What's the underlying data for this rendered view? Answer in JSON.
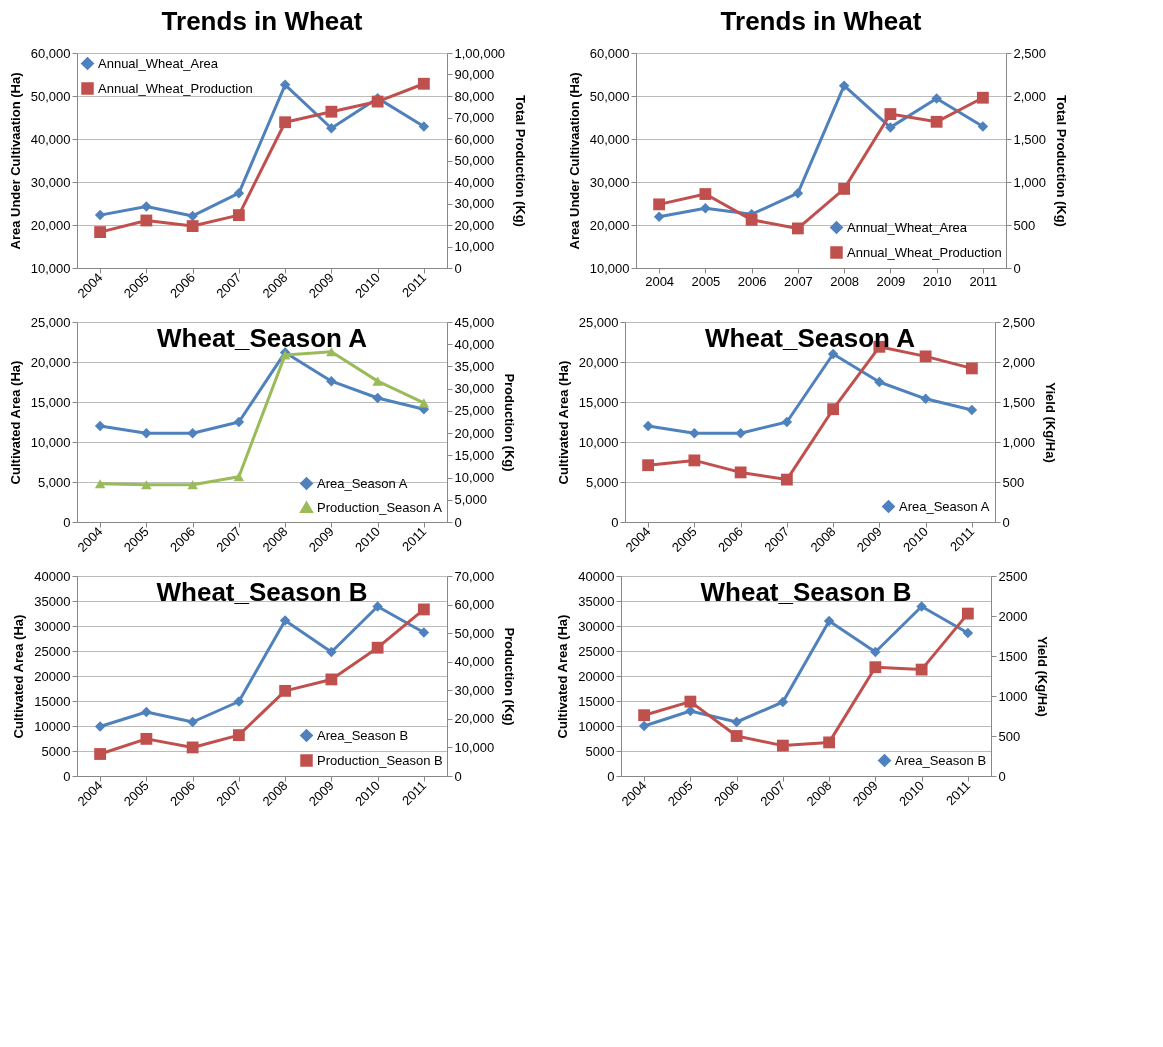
{
  "chart_data": [
    {
      "type": "line",
      "title": "Trends in Wheat",
      "ylabel": "Area Under Cultivaation (Ha)",
      "y2label": "Total Production (Kg)",
      "categories": [
        "2004",
        "2005",
        "2006",
        "2007",
        "2008",
        "2009",
        "2010",
        "2011"
      ],
      "series": [
        {
          "name": "Annual_Wheat_Area",
          "color": "#4f81bd",
          "marker": "diamond",
          "values": [
            22300,
            24300,
            22100,
            27400,
            52600,
            42500,
            49500,
            42900
          ]
        },
        {
          "name": "Annual_Wheat_Production",
          "color": "#c0504d",
          "marker": "square",
          "axis": "y2",
          "values": [
            16700,
            22100,
            19500,
            24600,
            67800,
            72700,
            77400,
            85700
          ]
        }
      ],
      "ylim": [
        10000,
        60000
      ],
      "yticks": [
        {
          "value": 10000,
          "label": "10,000"
        },
        {
          "value": 20000,
          "label": "20,000"
        },
        {
          "value": 30000,
          "label": "30,000"
        },
        {
          "value": 40000,
          "label": "40,000"
        },
        {
          "value": 50000,
          "label": "50,000"
        },
        {
          "value": 60000,
          "label": "60,000"
        }
      ],
      "y2lim": [
        0,
        100000
      ],
      "y2ticks": [
        0,
        {
          "value": 10000,
          "label": "10,000"
        },
        {
          "value": 20000,
          "label": "20,000"
        },
        {
          "value": 30000,
          "label": "30,000"
        },
        {
          "value": 40000,
          "label": "40,000"
        },
        {
          "value": 50000,
          "label": "50,000"
        },
        {
          "value": 60000,
          "label": "60,000"
        },
        {
          "value": 70000,
          "label": "70,000"
        },
        {
          "value": 80000,
          "label": "80,000"
        },
        {
          "value": 90000,
          "label": "90,000"
        },
        {
          "value": 100000,
          "label": "1,00,000"
        }
      ],
      "grid": "y",
      "legend": "top left",
      "line_style": "solid"
    },
    {
      "type": "line",
      "title": "Trends in Wheat",
      "ylabel": "Area Under Cultivaation (Ha)",
      "y2label": "Total Production (Kg)",
      "categories": [
        "2004",
        "2005",
        "2006",
        "2007",
        "2008",
        "2009",
        "2010",
        "2011"
      ],
      "series": [
        {
          "name": "Annual_Wheat_Area",
          "color": "#4f81bd",
          "marker": "diamond",
          "values": [
            21900,
            23900,
            22500,
            27400,
            52400,
            42700,
            49400,
            42900
          ]
        },
        {
          "name": "Annual_Wheat_Production",
          "color": "#c0504d",
          "marker": "square",
          "axis": "y2",
          "values": [
            740,
            860,
            560,
            460,
            920,
            1790,
            1700,
            1980
          ]
        }
      ],
      "ylim": [
        10000,
        60000
      ],
      "yticks": [
        {
          "value": 10000,
          "label": "10,000"
        },
        {
          "value": 20000,
          "label": "20,000"
        },
        {
          "value": 30000,
          "label": "30,000"
        },
        {
          "value": 40000,
          "label": "40,000"
        },
        {
          "value": 50000,
          "label": "50,000"
        },
        {
          "value": 60000,
          "label": "60,000"
        }
      ],
      "y2lim": [
        0,
        2500
      ],
      "y2ticks": [
        0,
        500,
        {
          "value": 1000,
          "label": "1,000"
        },
        {
          "value": 1500,
          "label": "1,500"
        },
        {
          "value": 2000,
          "label": "2,000"
        },
        {
          "value": 2500,
          "label": "2,500"
        }
      ],
      "grid": "y",
      "legend": "bottom right",
      "line_style": "solid"
    },
    {
      "type": "line",
      "title": "Wheat_Season A",
      "ylabel": "Cultivated Area (Ha)",
      "y2label": "Production (Kg)",
      "categories": [
        "2004",
        "2005",
        "2006",
        "2007",
        "2008",
        "2009",
        "2010",
        "2011"
      ],
      "series": [
        {
          "name": "Area_Season A",
          "color": "#4f81bd",
          "marker": "diamond",
          "values": [
            12000,
            11100,
            11100,
            12500,
            21200,
            17600,
            15500,
            14100
          ]
        },
        {
          "name": "Production_Season A",
          "color": "#9bbb59",
          "marker": "triangle",
          "axis": "y2",
          "values": [
            8600,
            8400,
            8400,
            10200,
            37600,
            38300,
            31700,
            26800
          ]
        }
      ],
      "ylim": [
        0,
        25000
      ],
      "yticks": [
        0,
        {
          "value": 5000,
          "label": "5,000"
        },
        {
          "value": 10000,
          "label": "10,000"
        },
        {
          "value": 15000,
          "label": "15,000"
        },
        {
          "value": 20000,
          "label": "20,000"
        },
        {
          "value": 25000,
          "label": "25,000"
        }
      ],
      "y2lim": [
        0,
        45000
      ],
      "y2ticks": [
        0,
        {
          "value": 5000,
          "label": "5,000"
        },
        {
          "value": 10000,
          "label": "10,000"
        },
        {
          "value": 15000,
          "label": "15,000"
        },
        {
          "value": 20000,
          "label": "20,000"
        },
        {
          "value": 25000,
          "label": "25,000"
        },
        {
          "value": 30000,
          "label": "30,000"
        },
        {
          "value": 35000,
          "label": "35,000"
        },
        {
          "value": 40000,
          "label": "40,000"
        },
        {
          "value": 45000,
          "label": "45,000"
        }
      ],
      "grid": "y",
      "legend": "bottom right",
      "line_style": "solid"
    },
    {
      "type": "line",
      "title": "Wheat_Season A",
      "ylabel": "Cultivated Area (Ha)",
      "y2label": "Yield (Kg/Ha)",
      "categories": [
        "2004",
        "2005",
        "2006",
        "2007",
        "2008",
        "2009",
        "2010",
        "2011"
      ],
      "series": [
        {
          "name": "Area_Season A",
          "color": "#4f81bd",
          "marker": "diamond",
          "values": [
            12000,
            11100,
            11100,
            12500,
            21000,
            17500,
            15400,
            14000
          ]
        },
        {
          "color": "#c0504d",
          "marker": "square",
          "axis": "y2",
          "values": [
            710,
            770,
            620,
            530,
            1410,
            2190,
            2070,
            1920
          ]
        }
      ],
      "ylim": [
        0,
        25000
      ],
      "yticks": [
        0,
        {
          "value": 5000,
          "label": "5,000"
        },
        {
          "value": 10000,
          "label": "10,000"
        },
        {
          "value": 15000,
          "label": "15,000"
        },
        {
          "value": 20000,
          "label": "20,000"
        },
        {
          "value": 25000,
          "label": "25,000"
        }
      ],
      "y2lim": [
        0,
        2500
      ],
      "y2ticks": [
        0,
        500,
        {
          "value": 1000,
          "label": "1,000"
        },
        {
          "value": 1500,
          "label": "1,500"
        },
        {
          "value": 2000,
          "label": "2,000"
        },
        {
          "value": 2500,
          "label": "2,500"
        }
      ],
      "grid": "y",
      "legend": "bottom right",
      "line_style": "solid"
    },
    {
      "type": "line",
      "title": "Wheat_Season B",
      "ylabel": "Cultivated Area (Ha)",
      "y2label": "Production (Kg)",
      "categories": [
        "2004",
        "2005",
        "2006",
        "2007",
        "2008",
        "2009",
        "2010",
        "2011"
      ],
      "series": [
        {
          "name": "Area_Season B",
          "color": "#4f81bd",
          "marker": "diamond",
          "values": [
            9900,
            12800,
            10800,
            14900,
            31100,
            24800,
            33900,
            28700
          ]
        },
        {
          "name": "Production_Season B",
          "color": "#c0504d",
          "marker": "square",
          "axis": "y2",
          "values": [
            7700,
            13000,
            10000,
            14300,
            29800,
            33800,
            44900,
            58300
          ]
        }
      ],
      "ylim": [
        0,
        40000
      ],
      "yticks": [
        0,
        5000,
        10000,
        15000,
        20000,
        25000,
        30000,
        35000,
        40000
      ],
      "y2lim": [
        0,
        70000
      ],
      "y2ticks": [
        0,
        {
          "value": 10000,
          "label": "10,000"
        },
        {
          "value": 20000,
          "label": "20,000"
        },
        {
          "value": 30000,
          "label": "30,000"
        },
        {
          "value": 40000,
          "label": "40,000"
        },
        {
          "value": 50000,
          "label": "50,000"
        },
        {
          "value": 60000,
          "label": "60,000"
        },
        {
          "value": 70000,
          "label": "70,000"
        }
      ],
      "grid": "y",
      "legend": "bottom right",
      "line_style": "solid"
    },
    {
      "type": "line",
      "title": "Wheat_Season B",
      "ylabel": "Cultivated Area (Ha)",
      "y2label": "Yield (Kg/Ha)",
      "categories": [
        "2004",
        "2005",
        "2006",
        "2007",
        "2008",
        "2009",
        "2010",
        "2011"
      ],
      "series": [
        {
          "name": "Area_Season B",
          "color": "#4f81bd",
          "marker": "diamond",
          "values": [
            10000,
            13000,
            10800,
            14800,
            31000,
            24800,
            33900,
            28600
          ]
        },
        {
          "color": "#c0504d",
          "marker": "square",
          "axis": "y2",
          "values": [
            760,
            930,
            500,
            380,
            420,
            1360,
            1330,
            2030
          ]
        }
      ],
      "ylim": [
        0,
        40000
      ],
      "yticks": [
        0,
        5000,
        10000,
        15000,
        20000,
        25000,
        30000,
        35000,
        40000
      ],
      "y2lim": [
        0,
        2500
      ],
      "y2ticks": [
        0,
        500,
        1000,
        1500,
        2000,
        2500
      ],
      "grid": "y",
      "legend": "bottom right",
      "line_style": "solid"
    }
  ]
}
